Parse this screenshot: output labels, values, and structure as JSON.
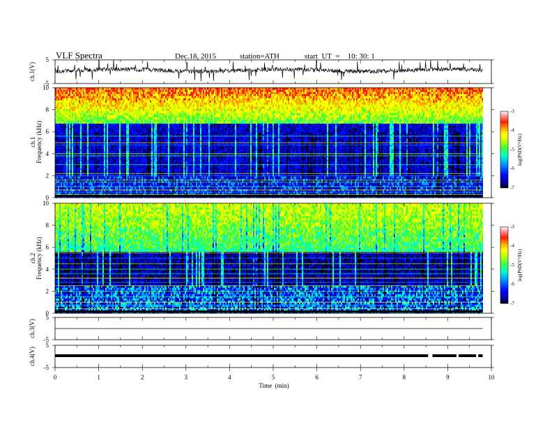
{
  "header": {
    "title": "VLF  Spectra",
    "date": "Dec.18, 2015",
    "station": "station=ATH",
    "start": "start  UT  =    10: 30: 1"
  },
  "chart_data": {
    "type": "heatmap",
    "xlabel": "Time  (min)",
    "x_ticks": [
      "0",
      "1",
      "2",
      "3",
      "4",
      "5",
      "6",
      "7",
      "8",
      "9",
      "10"
    ],
    "xlim": [
      0,
      10
    ],
    "panels": [
      {
        "id": "ch1v",
        "kind": "waveform",
        "ylabel": "ch.1(V)",
        "ylim": [
          -5,
          5
        ],
        "y_ticks": [
          "5",
          "-5"
        ]
      },
      {
        "id": "ch1s",
        "kind": "spectrogram",
        "ylabel": "ch.1",
        "ylabel2": "Frequency  (kHz)",
        "ylim": [
          0,
          10
        ],
        "y_ticks": [
          "0",
          "2",
          "4",
          "6",
          "8",
          "10"
        ],
        "colorbar": {
          "label": "log(PSD(V²/Hz)",
          "range": [
            -7,
            -3
          ],
          "ticks": [
            "-3",
            "-4",
            "-5",
            "-6",
            "-7"
          ]
        },
        "data_end_min": 9.8
      },
      {
        "id": "ch2s",
        "kind": "spectrogram",
        "ylabel": "ch.2",
        "ylabel2": "Frequency  (kHz)",
        "ylim": [
          0,
          10
        ],
        "y_ticks": [
          "0",
          "2",
          "4",
          "6",
          "8",
          "10"
        ],
        "colorbar": {
          "label": "log(PSD(V²/Hz)",
          "range": [
            -7,
            -3
          ],
          "ticks": [
            "-3",
            "-4",
            "-5",
            "-6",
            "-7"
          ]
        },
        "data_end_min": 9.8
      },
      {
        "id": "ch3v",
        "kind": "waveform",
        "ylabel": "ch.3(V)",
        "ylim": [
          -5,
          5
        ],
        "y_ticks": [
          "5",
          "-5"
        ]
      },
      {
        "id": "ch4v",
        "kind": "waveform",
        "ylabel": "ch.4(V)",
        "ylim": [
          -5,
          5
        ],
        "y_ticks": [
          "5",
          "-5"
        ],
        "gaps_min": [
          [
            8.55,
            8.65
          ],
          [
            9.2,
            9.25
          ],
          [
            9.65,
            9.7
          ]
        ]
      }
    ]
  },
  "colors": {
    "colormap": [
      "#000000",
      "#0000a0",
      "#0010ff",
      "#00a0ff",
      "#00ffcc",
      "#40ff40",
      "#c8ff00",
      "#ffff00",
      "#ffa000",
      "#ff2000",
      "#ff9090",
      "#ffffff"
    ]
  }
}
